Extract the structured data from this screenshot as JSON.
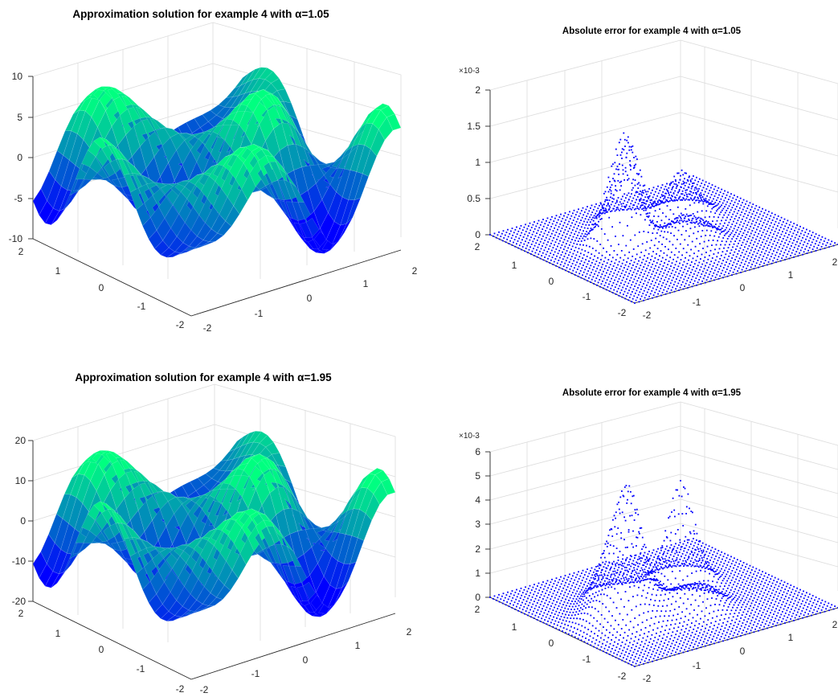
{
  "figure": {
    "panels": [
      {
        "title": "Approximation solution for example 4 with α=1.05",
        "z_ticks": [
          "10",
          "5",
          "0",
          "-5",
          "-10"
        ],
        "x_ticks": [
          "-2",
          "-1",
          "0",
          "1",
          "2"
        ],
        "y_ticks": [
          "-2",
          "-1",
          "0",
          "1",
          "2"
        ],
        "z_exponent": ""
      },
      {
        "title": "Absolute error for example 4 with α=1.05",
        "z_ticks": [
          "2",
          "1.5",
          "1",
          "0.5",
          "0"
        ],
        "x_ticks": [
          "-2",
          "-1",
          "0",
          "1",
          "2"
        ],
        "y_ticks": [
          "-2",
          "-1",
          "0",
          "1",
          "2"
        ],
        "z_exponent": "×10-3"
      },
      {
        "title": "Approximation solution for example 4 with α=1.95",
        "z_ticks": [
          "20",
          "10",
          "0",
          "-10",
          "-20"
        ],
        "x_ticks": [
          "-2",
          "-1",
          "0",
          "1",
          "2"
        ],
        "y_ticks": [
          "-2",
          "-1",
          "0",
          "1",
          "2"
        ],
        "z_exponent": ""
      },
      {
        "title": "Absolute error for example 4 with α=1.95",
        "z_ticks": [
          "6",
          "5",
          "4",
          "3",
          "2",
          "1",
          "0"
        ],
        "x_ticks": [
          "-2",
          "-1",
          "0",
          "1",
          "2"
        ],
        "y_ticks": [
          "-2",
          "-1",
          "0",
          "1",
          "2"
        ],
        "z_exponent": "×10-3"
      }
    ]
  },
  "chart_data": [
    {
      "type": "surface",
      "title": "Approximation solution for example 4 with α=1.05",
      "xlim": [
        -2,
        2
      ],
      "ylim": [
        -2,
        2
      ],
      "zlim": [
        -10,
        10
      ],
      "grid": true,
      "colormap": "winter",
      "approx_z_range": [
        -10,
        11
      ]
    },
    {
      "type": "scatter",
      "title": "Absolute error for example 4 with α=1.05",
      "xlim": [
        -2,
        2
      ],
      "ylim": [
        -2,
        2
      ],
      "zlim": [
        0,
        0.002
      ],
      "z_scale_factor": "10^-3",
      "grid": true,
      "marker_color": "#0000ff",
      "approx_z_max": 0.00155
    },
    {
      "type": "surface",
      "title": "Approximation solution for example 4 with α=1.95",
      "xlim": [
        -2,
        2
      ],
      "ylim": [
        -2,
        2
      ],
      "zlim": [
        -20,
        20
      ],
      "grid": true,
      "colormap": "winter",
      "approx_z_range": [
        -22,
        22
      ]
    },
    {
      "type": "scatter",
      "title": "Absolute error for example 4 with α=1.95",
      "xlim": [
        -2,
        2
      ],
      "ylim": [
        -2,
        2
      ],
      "zlim": [
        0,
        0.006
      ],
      "z_scale_factor": "10^-3",
      "grid": true,
      "marker_color": "#0000ff",
      "approx_z_max": 0.0048
    }
  ]
}
